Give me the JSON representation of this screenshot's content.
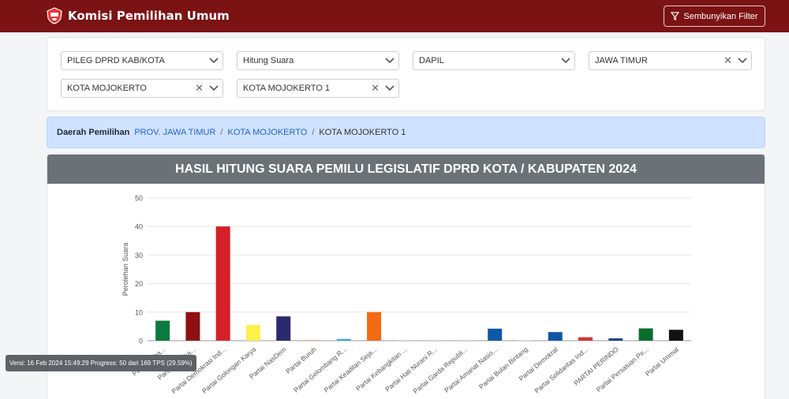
{
  "header": {
    "title": "Komisi Pemilihan Umum",
    "filter_button": "Sembunyikan Filter",
    "logo_icon": "kpu-logo-icon",
    "filter_icon": "funnel-icon"
  },
  "filters": [
    {
      "value": "PILEG DPRD KAB/KOTA",
      "clearable": false
    },
    {
      "value": "Hitung Suara",
      "clearable": false
    },
    {
      "value": "DAPIL",
      "clearable": false
    },
    {
      "value": "JAWA TIMUR",
      "clearable": true
    },
    {
      "value": "KOTA MOJOKERTO",
      "clearable": true
    },
    {
      "value": "KOTA MOJOKERTO 1",
      "clearable": true
    }
  ],
  "breadcrumb": {
    "label": "Daerah Pemilihan",
    "items": [
      "PROV. JAWA TIMUR",
      "KOTA MOJOKERTO",
      "KOTA MOJOKERTO 1"
    ],
    "separator": "/"
  },
  "chart_title": "HASIL HITUNG SUARA PEMILU LEGISLATIF DPRD KOTA / KABUPATEN 2024",
  "version_text": "Versi: 16 Feb 2024 15:49:29 Progress: 50 dari 169 TPS (29.59%)",
  "chart_data": {
    "type": "bar",
    "title": "HASIL HITUNG SUARA PEMILU LEGISLATIF DPRD KOTA / KABUPATEN 2024",
    "ylabel": "Perolehan Suara",
    "xlabel": "",
    "ylim": [
      0,
      50
    ],
    "yticks": [
      "0",
      "10",
      "20",
      "30",
      "40",
      "50"
    ],
    "grid": true,
    "categories": [
      "Partai Kebangkitan Bangsa",
      "Partai Gerakan Indonesia Raya",
      "Partai Demokrasi Ind...",
      "Partai Golongan Karya",
      "Partai NasDem",
      "Partai Buruh",
      "Partai Gelombang R...",
      "Partai Keadilan Seja...",
      "Partai Kebangkitan ...",
      "Partai Hati Nurani R...",
      "Partai Garda Republi...",
      "Partai Amanat Nasio...",
      "Partai Bulan Bintang",
      "Partai Demokrat",
      "Partai Solidaritas Ind...",
      "PARTAI PERINDO",
      "Partai Persatuan Pe...",
      "Partai Ummat"
    ],
    "tick_labels": [
      "Partai Keba...",
      "Partai Geraka...",
      "Partai Demokrasi Ind...",
      "Partai Golongan Karya",
      "Partai NasDem",
      "Partai Buruh",
      "Partai Gelombang R...",
      "Partai Keadilan Seja...",
      "Partai Kebangkitan ...",
      "Partai Hati Nurani R...",
      "Partai Garda Republi...",
      "Partai Amanat Nasio...",
      "Partai Bulan Bintang",
      "Partai Demokrat",
      "Partai Solidaritas Ind...",
      "PARTAI PERINDO",
      "Partai Persatuan Pe...",
      "Partai Ummat"
    ],
    "values": [
      7,
      10,
      40,
      5.5,
      8.5,
      0,
      0.6,
      10,
      0,
      0,
      0,
      4.2,
      0,
      3,
      1.2,
      0.8,
      4.3,
      3.8
    ],
    "colors": [
      "#0b7a3e",
      "#8f0f12",
      "#d42027",
      "#fff04a",
      "#2a2a6e",
      "#e9a0a0",
      "#3ba9d8",
      "#f26a12",
      "#f5c2c2",
      "#f5c2c2",
      "#f5c2c2",
      "#0e58a8",
      "#d9e8d0",
      "#0e56a8",
      "#d0343a",
      "#1f3f8e",
      "#0b6e2c",
      "#111111"
    ]
  }
}
